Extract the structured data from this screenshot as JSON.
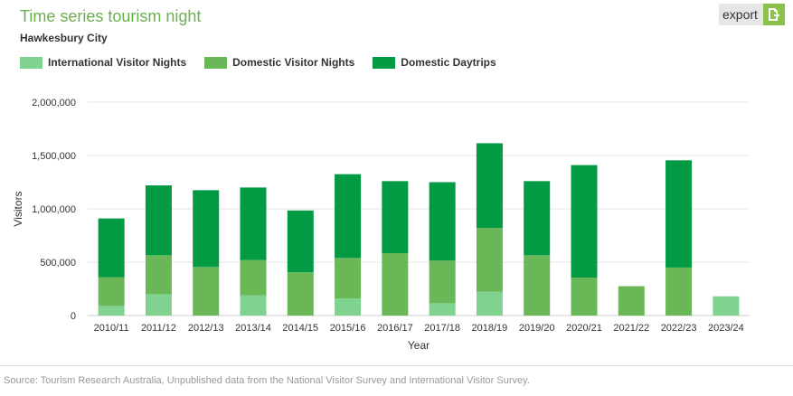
{
  "header": {
    "title": "Time series tourism night",
    "subtitle": "Hawkesbury City",
    "export_label": "export"
  },
  "colors": {
    "international": "#7fd38e",
    "domestic_nights": "#6ab758",
    "daytrips": "#039a44",
    "grid": "#e6e6e6",
    "axis_text": "#333333"
  },
  "chart_data": {
    "type": "bar",
    "stacked": true,
    "title": "Time series tourism night",
    "subtitle": "Hawkesbury City",
    "xlabel": "Year",
    "ylabel": "Visitors",
    "ylim": [
      0,
      2000000
    ],
    "yticks": [
      0,
      500000,
      1000000,
      1500000,
      2000000
    ],
    "ytick_labels": [
      "0",
      "500,000",
      "1,000,000",
      "1,500,000",
      "2,000,000"
    ],
    "grid": true,
    "legend_position": "top-left",
    "categories": [
      "2010/11",
      "2011/12",
      "2012/13",
      "2013/14",
      "2014/15",
      "2015/16",
      "2016/17",
      "2017/18",
      "2018/19",
      "2019/20",
      "2020/21",
      "2021/22",
      "2022/23",
      "2023/24"
    ],
    "series": [
      {
        "name": "International Visitor Nights",
        "color": "#7fd38e",
        "values": [
          90000,
          200000,
          0,
          190000,
          0,
          160000,
          0,
          115000,
          225000,
          0,
          0,
          0,
          0,
          180000
        ]
      },
      {
        "name": "Domestic Visitor Nights",
        "color": "#6ab758",
        "values": [
          270000,
          365000,
          455000,
          330000,
          405000,
          380000,
          585000,
          400000,
          595000,
          565000,
          355000,
          275000,
          450000,
          0
        ]
      },
      {
        "name": "Domestic Daytrips",
        "color": "#039a44",
        "values": [
          550000,
          655000,
          720000,
          680000,
          580000,
          785000,
          675000,
          735000,
          795000,
          695000,
          1055000,
          0,
          1005000,
          0
        ]
      }
    ]
  },
  "footer": {
    "source": "Source: Tourism Research Australia, Unpublished data from the National Visitor Survey and International Visitor Survey."
  }
}
